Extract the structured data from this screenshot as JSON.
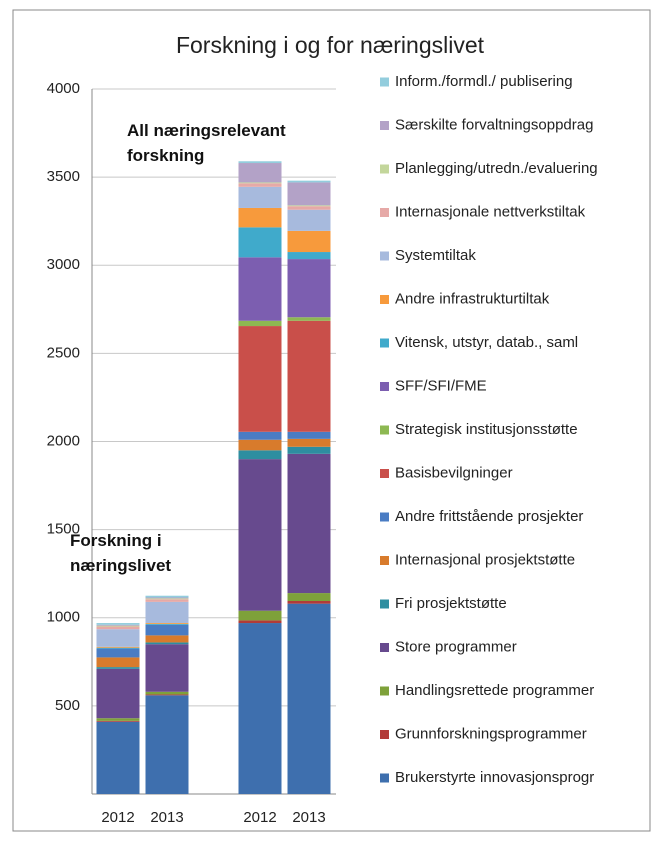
{
  "chart_data": {
    "type": "stacked_bar",
    "title": "Forskning i og for næringslivet",
    "categories": [
      "2012",
      "2013",
      "2012",
      "2013"
    ],
    "annotations": [
      "Forskning i næringslivet",
      "All næringsrelevant forskning"
    ],
    "ylim": [
      0,
      4000
    ],
    "yticks": [
      500,
      1000,
      1500,
      2000,
      2500,
      3000,
      3500,
      4000
    ],
    "grid": true,
    "legend": "right",
    "series": [
      {
        "name": "Brukerstyrte innovasjonsprogr",
        "color": "#3e6fae",
        "values": [
          410,
          560,
          970,
          1080
        ]
      },
      {
        "name": "Grunnforskningsprogrammer",
        "color": "#b23b38",
        "values": [
          5,
          5,
          15,
          15
        ]
      },
      {
        "name": "Handlingsrettede programmer",
        "color": "#7ea13a",
        "values": [
          15,
          15,
          55,
          45
        ]
      },
      {
        "name": "Store programmer",
        "color": "#674a8e",
        "values": [
          280,
          270,
          860,
          790
        ]
      },
      {
        "name": "Fri prosjektstøtte",
        "color": "#2e8ea0",
        "values": [
          10,
          10,
          50,
          40
        ]
      },
      {
        "name": "Internasjonal prosjektstøtte",
        "color": "#d87b2c",
        "values": [
          55,
          40,
          60,
          45
        ]
      },
      {
        "name": "Andre frittstående prosjekter",
        "color": "#4a7cc3",
        "values": [
          50,
          60,
          45,
          40
        ]
      },
      {
        "name": "Basisbevilgninger",
        "color": "#c94f4a",
        "values": [
          0,
          0,
          600,
          630
        ]
      },
      {
        "name": "Strategisk institusjonsstøtte",
        "color": "#8db852",
        "values": [
          0,
          0,
          30,
          20
        ]
      },
      {
        "name": "SFF/SFI/FME",
        "color": "#7c5eb0",
        "values": [
          0,
          0,
          360,
          330
        ]
      },
      {
        "name": "Vitensk, utstyr, datab., saml",
        "color": "#40aacb",
        "values": [
          5,
          5,
          170,
          40
        ]
      },
      {
        "name": "Andre infrastrukturtiltak",
        "color": "#f79a3c",
        "values": [
          5,
          5,
          110,
          120
        ]
      },
      {
        "name": "Systemtiltak",
        "color": "#a7badd",
        "values": [
          100,
          120,
          120,
          120
        ]
      },
      {
        "name": "Internasjonale nettverkstiltak",
        "color": "#e6a9a7",
        "values": [
          15,
          15,
          20,
          20
        ]
      },
      {
        "name": "Planlegging/utredn./evaluering",
        "color": "#c3d69b",
        "values": [
          5,
          5,
          5,
          5
        ]
      },
      {
        "name": "Særskilte forvaltningsoppdrag",
        "color": "#b3a2c7",
        "values": [
          5,
          5,
          110,
          130
        ]
      },
      {
        "name": "Inform./formdl./ publisering",
        "color": "#93cddd",
        "values": [
          10,
          10,
          10,
          10
        ]
      }
    ]
  }
}
